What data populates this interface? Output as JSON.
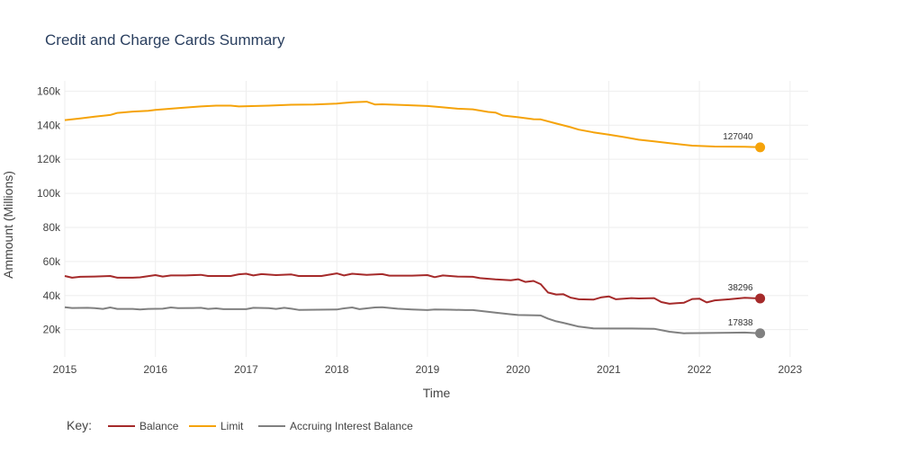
{
  "colors": {
    "balance": "#a52a2a",
    "limit": "#f5a30a",
    "accruing": "#808080",
    "grid": "#eeeeee",
    "text": "#444444",
    "title": "#2a3f5f"
  },
  "chart_data": {
    "type": "line",
    "title": "Credit and Charge Cards Summary",
    "xlabel": "Time",
    "ylabel": "Ammount (Millions)",
    "xlim": [
      2015.0,
      2023.2
    ],
    "ylim": [
      4000,
      166000
    ],
    "grid": true,
    "legend_title": "Key:",
    "legend_position": "bottom-left",
    "x_ticks": [
      2015,
      2016,
      2017,
      2018,
      2019,
      2020,
      2021,
      2022,
      2023
    ],
    "x_tick_labels": [
      "2015",
      "2016",
      "2017",
      "2018",
      "2019",
      "2020",
      "2021",
      "2022",
      "2023"
    ],
    "y_ticks": [
      20000,
      40000,
      60000,
      80000,
      100000,
      120000,
      140000,
      160000
    ],
    "y_tick_labels": [
      "20k",
      "40k",
      "60k",
      "80k",
      "100k",
      "120k",
      "140k",
      "160k"
    ],
    "series": [
      {
        "name": "Balance",
        "color_key": "balance",
        "end_label": "38296",
        "points": [
          [
            2015.0,
            51500
          ],
          [
            2015.08,
            50500
          ],
          [
            2015.17,
            51000
          ],
          [
            2015.33,
            51200
          ],
          [
            2015.5,
            51500
          ],
          [
            2015.58,
            50500
          ],
          [
            2015.75,
            50500
          ],
          [
            2015.83,
            50700
          ],
          [
            2016.0,
            52000
          ],
          [
            2016.08,
            51200
          ],
          [
            2016.17,
            51800
          ],
          [
            2016.33,
            51800
          ],
          [
            2016.5,
            52200
          ],
          [
            2016.58,
            51500
          ],
          [
            2016.83,
            51500
          ],
          [
            2016.92,
            52500
          ],
          [
            2017.0,
            52800
          ],
          [
            2017.08,
            51800
          ],
          [
            2017.17,
            52600
          ],
          [
            2017.33,
            52000
          ],
          [
            2017.5,
            52400
          ],
          [
            2017.58,
            51500
          ],
          [
            2017.83,
            51500
          ],
          [
            2018.0,
            53000
          ],
          [
            2018.08,
            51800
          ],
          [
            2018.17,
            52800
          ],
          [
            2018.33,
            52200
          ],
          [
            2018.5,
            52600
          ],
          [
            2018.58,
            51700
          ],
          [
            2018.83,
            51700
          ],
          [
            2019.0,
            52000
          ],
          [
            2019.08,
            50800
          ],
          [
            2019.17,
            51800
          ],
          [
            2019.33,
            51200
          ],
          [
            2019.5,
            51000
          ],
          [
            2019.58,
            50200
          ],
          [
            2019.75,
            49500
          ],
          [
            2019.92,
            49000
          ],
          [
            2020.0,
            49600
          ],
          [
            2020.08,
            48000
          ],
          [
            2020.17,
            48600
          ],
          [
            2020.25,
            46700
          ],
          [
            2020.33,
            41800
          ],
          [
            2020.42,
            40600
          ],
          [
            2020.5,
            40800
          ],
          [
            2020.58,
            38800
          ],
          [
            2020.67,
            37800
          ],
          [
            2020.83,
            37600
          ],
          [
            2020.92,
            39000
          ],
          [
            2021.0,
            39500
          ],
          [
            2021.08,
            37800
          ],
          [
            2021.25,
            38500
          ],
          [
            2021.33,
            38300
          ],
          [
            2021.5,
            38500
          ],
          [
            2021.58,
            36200
          ],
          [
            2021.67,
            35200
          ],
          [
            2021.75,
            35500
          ],
          [
            2021.83,
            35800
          ],
          [
            2021.92,
            38000
          ],
          [
            2022.0,
            38200
          ],
          [
            2022.08,
            36000
          ],
          [
            2022.17,
            37200
          ],
          [
            2022.33,
            37800
          ],
          [
            2022.5,
            38700
          ],
          [
            2022.67,
            38296
          ]
        ]
      },
      {
        "name": "Limit",
        "color_key": "limit",
        "end_label": "127040",
        "points": [
          [
            2015.0,
            143000
          ],
          [
            2015.17,
            144000
          ],
          [
            2015.33,
            145000
          ],
          [
            2015.5,
            146000
          ],
          [
            2015.58,
            147200
          ],
          [
            2015.75,
            148000
          ],
          [
            2015.92,
            148500
          ],
          [
            2016.0,
            149000
          ],
          [
            2016.25,
            150000
          ],
          [
            2016.5,
            151000
          ],
          [
            2016.67,
            151500
          ],
          [
            2016.83,
            151500
          ],
          [
            2016.92,
            151000
          ],
          [
            2017.25,
            151500
          ],
          [
            2017.5,
            152000
          ],
          [
            2017.75,
            152200
          ],
          [
            2018.0,
            152700
          ],
          [
            2018.17,
            153500
          ],
          [
            2018.33,
            153800
          ],
          [
            2018.42,
            152200
          ],
          [
            2018.5,
            152300
          ],
          [
            2018.75,
            151800
          ],
          [
            2019.0,
            151300
          ],
          [
            2019.17,
            150500
          ],
          [
            2019.33,
            149700
          ],
          [
            2019.5,
            149300
          ],
          [
            2019.67,
            147800
          ],
          [
            2019.75,
            147400
          ],
          [
            2019.83,
            145700
          ],
          [
            2020.0,
            144700
          ],
          [
            2020.17,
            143500
          ],
          [
            2020.25,
            143400
          ],
          [
            2020.42,
            141000
          ],
          [
            2020.58,
            138800
          ],
          [
            2020.67,
            137400
          ],
          [
            2020.83,
            135800
          ],
          [
            2021.0,
            134500
          ],
          [
            2021.17,
            133000
          ],
          [
            2021.33,
            131500
          ],
          [
            2021.5,
            130500
          ],
          [
            2021.67,
            129500
          ],
          [
            2021.92,
            128000
          ],
          [
            2022.17,
            127500
          ],
          [
            2022.5,
            127300
          ],
          [
            2022.67,
            127040
          ]
        ]
      },
      {
        "name": "Accruing Interest Balance",
        "color_key": "accruing",
        "end_label": "17838",
        "points": [
          [
            2015.0,
            33200
          ],
          [
            2015.08,
            32700
          ],
          [
            2015.25,
            32800
          ],
          [
            2015.33,
            32600
          ],
          [
            2015.42,
            32200
          ],
          [
            2015.5,
            33000
          ],
          [
            2015.58,
            32200
          ],
          [
            2015.75,
            32200
          ],
          [
            2015.83,
            31800
          ],
          [
            2015.92,
            32200
          ],
          [
            2016.08,
            32300
          ],
          [
            2016.17,
            33000
          ],
          [
            2016.25,
            32600
          ],
          [
            2016.42,
            32700
          ],
          [
            2016.5,
            32800
          ],
          [
            2016.58,
            32200
          ],
          [
            2016.67,
            32500
          ],
          [
            2016.75,
            32000
          ],
          [
            2017.0,
            32000
          ],
          [
            2017.08,
            32800
          ],
          [
            2017.25,
            32600
          ],
          [
            2017.33,
            32200
          ],
          [
            2017.42,
            32800
          ],
          [
            2017.5,
            32300
          ],
          [
            2017.58,
            31600
          ],
          [
            2018.0,
            31800
          ],
          [
            2018.08,
            32500
          ],
          [
            2018.17,
            33000
          ],
          [
            2018.25,
            32000
          ],
          [
            2018.42,
            33000
          ],
          [
            2018.5,
            33200
          ],
          [
            2018.67,
            32300
          ],
          [
            2018.83,
            31800
          ],
          [
            2019.0,
            31500
          ],
          [
            2019.08,
            31800
          ],
          [
            2019.25,
            31700
          ],
          [
            2019.42,
            31500
          ],
          [
            2019.5,
            31500
          ],
          [
            2019.75,
            30000
          ],
          [
            2019.92,
            29000
          ],
          [
            2020.0,
            28600
          ],
          [
            2020.25,
            28300
          ],
          [
            2020.33,
            26500
          ],
          [
            2020.42,
            24900
          ],
          [
            2020.5,
            24000
          ],
          [
            2020.67,
            21800
          ],
          [
            2020.83,
            20800
          ],
          [
            2021.0,
            20700
          ],
          [
            2021.25,
            20700
          ],
          [
            2021.5,
            20500
          ],
          [
            2021.67,
            18800
          ],
          [
            2021.83,
            17900
          ],
          [
            2022.0,
            18000
          ],
          [
            2022.33,
            18200
          ],
          [
            2022.5,
            18300
          ],
          [
            2022.67,
            17838
          ]
        ]
      }
    ]
  }
}
